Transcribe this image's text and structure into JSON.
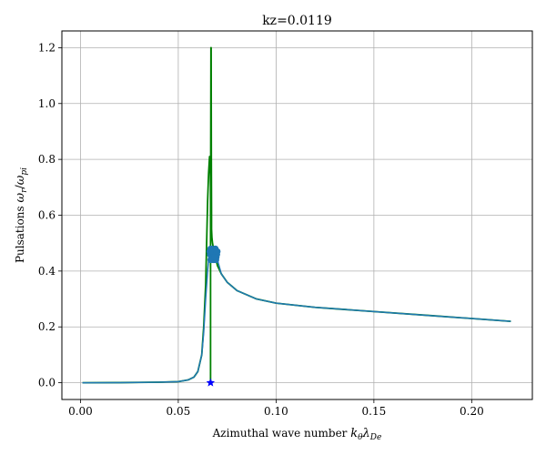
{
  "chart_data": {
    "type": "line",
    "title": "kz=0.0119",
    "xlabel_prefix": "Azimuthal wave number ",
    "xlabel_math": "kθλDe",
    "xlabel_parts": {
      "k": "k",
      "sub1": "θ",
      "lambda": "λ",
      "sub2": "De"
    },
    "ylabel_prefix": "Pulsations ",
    "ylabel_parts": {
      "w1": "ω",
      "sub1": "r",
      "slash": "/",
      "w2": "ω",
      "sub2": "pi"
    },
    "xlim": [
      -0.0095,
      0.231
    ],
    "ylim": [
      -0.06,
      1.26
    ],
    "grid": true,
    "xticks": [
      0.0,
      0.05,
      0.1,
      0.15,
      0.2
    ],
    "xtick_labels": [
      "0.00",
      "0.05",
      "0.10",
      "0.15",
      "0.20"
    ],
    "yticks": [
      0.0,
      0.2,
      0.4,
      0.6,
      0.8,
      1.0,
      1.2
    ],
    "ytick_labels": [
      "0.0",
      "0.2",
      "0.4",
      "0.6",
      "0.8",
      "1.0",
      "1.2"
    ],
    "series": [
      {
        "color": "#008000",
        "width": 1.8,
        "x": [
          0.001,
          0.02,
          0.04,
          0.05,
          0.055,
          0.058,
          0.06,
          0.062,
          0.063,
          0.064,
          0.0645,
          0.065,
          0.0655,
          0.066,
          0.0663,
          0.0665,
          0.0665,
          0.0665,
          0.0667,
          0.0668,
          0.0669,
          0.067,
          0.067,
          0.0672,
          0.0675,
          0.068,
          0.069,
          0.07,
          0.072,
          0.075,
          0.08,
          0.09,
          0.1,
          0.12,
          0.15,
          0.18,
          0.22
        ],
        "y": [
          0.0,
          0.0005,
          0.002,
          0.004,
          0.01,
          0.02,
          0.04,
          0.1,
          0.2,
          0.35,
          0.5,
          0.65,
          0.75,
          0.81,
          0.78,
          0.7,
          0.0,
          0.55,
          1.2,
          1.2,
          0.8,
          0.6,
          0.55,
          0.52,
          0.5,
          0.48,
          0.45,
          0.42,
          0.39,
          0.36,
          0.33,
          0.3,
          0.285,
          0.27,
          0.255,
          0.24,
          0.22
        ]
      },
      {
        "color": "#1f77b4",
        "width": 1.5,
        "x": [
          0.001,
          0.02,
          0.04,
          0.05,
          0.055,
          0.058,
          0.06,
          0.062,
          0.063,
          0.064,
          0.065,
          0.0655,
          0.066,
          0.067,
          0.068,
          0.069,
          0.07,
          0.072,
          0.075,
          0.08,
          0.09,
          0.1,
          0.12,
          0.15,
          0.18,
          0.22
        ],
        "y": [
          0.0,
          0.0005,
          0.002,
          0.004,
          0.01,
          0.02,
          0.04,
          0.1,
          0.18,
          0.3,
          0.4,
          0.44,
          0.46,
          0.47,
          0.465,
          0.46,
          0.44,
          0.39,
          0.36,
          0.33,
          0.3,
          0.285,
          0.27,
          0.255,
          0.24,
          0.22
        ]
      }
    ],
    "marker_cluster": {
      "color": "#1f77b4",
      "x": [
        0.066,
        0.0665,
        0.067,
        0.0675,
        0.068,
        0.0685,
        0.069,
        0.0695,
        0.07,
        0.0662,
        0.0668,
        0.0672,
        0.0678,
        0.0683,
        0.0688,
        0.0693,
        0.0698,
        0.0665,
        0.0675,
        0.0685,
        0.0695
      ],
      "y": [
        0.47,
        0.44,
        0.48,
        0.45,
        0.47,
        0.44,
        0.48,
        0.45,
        0.47,
        0.46,
        0.45,
        0.47,
        0.44,
        0.46,
        0.48,
        0.44,
        0.46,
        0.48,
        0.47,
        0.45,
        0.47
      ]
    },
    "star_point": {
      "color": "#0000ff",
      "x": 0.0665,
      "y": 0.0
    }
  }
}
